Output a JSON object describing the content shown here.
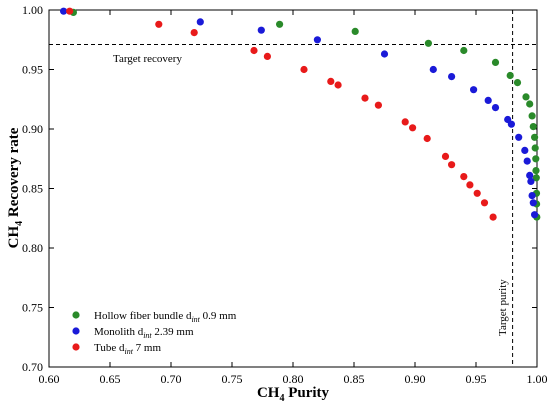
{
  "chart_data": {
    "type": "scatter",
    "title": "",
    "xlabel": {
      "main": "CH",
      "sub": "4",
      "rest": " Purity"
    },
    "ylabel": {
      "main": "CH",
      "sub": "4",
      "rest": " Recovery rate"
    },
    "xlim": [
      0.6,
      1.0
    ],
    "ylim": [
      0.7,
      1.0
    ],
    "xticks": [
      0.6,
      0.65,
      0.7,
      0.75,
      0.8,
      0.85,
      0.9,
      0.95,
      1.0
    ],
    "yticks": [
      0.7,
      0.75,
      0.8,
      0.85,
      0.9,
      0.95,
      1.0
    ],
    "xtick_labels": [
      "0.60",
      "0.65",
      "0.70",
      "0.75",
      "0.80",
      "0.85",
      "0.90",
      "0.95",
      "1.00"
    ],
    "ytick_labels": [
      "0.70",
      "0.75",
      "0.80",
      "0.85",
      "0.90",
      "0.95",
      "1.00"
    ],
    "grid": false,
    "legend_position": "bottom-left",
    "reference_lines": [
      {
        "orientation": "horizontal",
        "value": 0.971,
        "label": "Target recovery"
      },
      {
        "orientation": "vertical",
        "value": 0.98,
        "label": "Target purity"
      }
    ],
    "series": [
      {
        "name": "Hollow fiber bundle",
        "d_symbol": "d",
        "d_subscript": "int",
        "size": " 0.9 mm",
        "color": "#2a8a2a",
        "points": [
          [
            0.62,
            0.998
          ],
          [
            0.789,
            0.988
          ],
          [
            0.851,
            0.982
          ],
          [
            0.911,
            0.972
          ],
          [
            0.94,
            0.966
          ],
          [
            0.966,
            0.956
          ],
          [
            0.978,
            0.945
          ],
          [
            0.984,
            0.939
          ],
          [
            0.991,
            0.927
          ],
          [
            0.994,
            0.921
          ],
          [
            0.996,
            0.911
          ],
          [
            0.997,
            0.902
          ],
          [
            0.998,
            0.893
          ],
          [
            0.9985,
            0.884
          ],
          [
            0.999,
            0.875
          ],
          [
            0.9992,
            0.865
          ],
          [
            0.9994,
            0.859
          ],
          [
            0.9996,
            0.846
          ],
          [
            0.9997,
            0.837
          ],
          [
            0.9998,
            0.826
          ]
        ]
      },
      {
        "name": "Monolith",
        "d_symbol": "d",
        "d_subscript": "int",
        "size": " 2.39 mm",
        "color": "#1a1ad8",
        "points": [
          [
            0.612,
            0.999
          ],
          [
            0.724,
            0.99
          ],
          [
            0.774,
            0.983
          ],
          [
            0.82,
            0.975
          ],
          [
            0.875,
            0.963
          ],
          [
            0.915,
            0.95
          ],
          [
            0.93,
            0.944
          ],
          [
            0.948,
            0.933
          ],
          [
            0.96,
            0.924
          ],
          [
            0.966,
            0.918
          ],
          [
            0.976,
            0.908
          ],
          [
            0.979,
            0.904
          ],
          [
            0.985,
            0.893
          ],
          [
            0.99,
            0.882
          ],
          [
            0.992,
            0.873
          ],
          [
            0.994,
            0.861
          ],
          [
            0.995,
            0.856
          ],
          [
            0.996,
            0.844
          ],
          [
            0.997,
            0.838
          ],
          [
            0.998,
            0.828
          ]
        ]
      },
      {
        "name": "Tube",
        "d_symbol": "d",
        "d_subscript": "int",
        "size": " 7 mm",
        "color": "#e81a1a",
        "points": [
          [
            0.617,
            0.999
          ],
          [
            0.69,
            0.988
          ],
          [
            0.719,
            0.981
          ],
          [
            0.768,
            0.966
          ],
          [
            0.779,
            0.961
          ],
          [
            0.809,
            0.95
          ],
          [
            0.831,
            0.94
          ],
          [
            0.837,
            0.937
          ],
          [
            0.859,
            0.926
          ],
          [
            0.87,
            0.92
          ],
          [
            0.892,
            0.906
          ],
          [
            0.898,
            0.901
          ],
          [
            0.91,
            0.892
          ],
          [
            0.925,
            0.877
          ],
          [
            0.93,
            0.87
          ],
          [
            0.94,
            0.86
          ],
          [
            0.945,
            0.853
          ],
          [
            0.951,
            0.846
          ],
          [
            0.957,
            0.838
          ],
          [
            0.964,
            0.826
          ]
        ]
      }
    ]
  }
}
